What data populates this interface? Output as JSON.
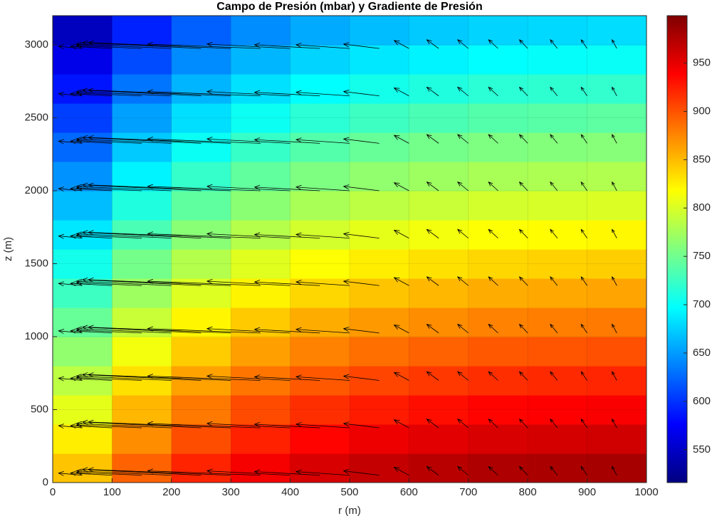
{
  "chart_data": {
    "type": "contourf",
    "title": "Campo de Presión (mbar) y Gradiente de Presión",
    "xlabel": "r (m)",
    "ylabel": "z (m)",
    "xlim": [
      0,
      1000
    ],
    "ylim": [
      0,
      3200
    ],
    "xticks": [
      0,
      100,
      200,
      300,
      400,
      500,
      600,
      700,
      800,
      900,
      1000
    ],
    "yticks": [
      0,
      500,
      1000,
      1500,
      2000,
      2500,
      3000
    ],
    "grid": true,
    "colormap": "jet",
    "clim": [
      516,
      999
    ],
    "colorbar_ticks": [
      550,
      600,
      650,
      700,
      750,
      800,
      850,
      900,
      950
    ],
    "field": {
      "r_centers": [
        50,
        150,
        250,
        350,
        450,
        550,
        650,
        750,
        850,
        950
      ],
      "z_centers": [
        100,
        300,
        500,
        700,
        900,
        1100,
        1300,
        1500,
        1700,
        1900,
        2100,
        2300,
        2500,
        2700,
        2900,
        3100
      ],
      "values": [
        [
          846,
          892,
          922,
          943,
          957,
          966,
          972,
          977,
          979,
          981
        ],
        [
          826,
          872,
          902,
          923,
          937,
          946,
          952,
          957,
          959,
          961
        ],
        [
          806,
          852,
          882,
          903,
          917,
          926,
          932,
          937,
          939,
          941
        ],
        [
          786,
          832,
          862,
          883,
          897,
          906,
          912,
          917,
          919,
          921
        ],
        [
          766,
          812,
          842,
          863,
          877,
          886,
          892,
          897,
          899,
          901
        ],
        [
          746,
          792,
          822,
          843,
          857,
          866,
          872,
          877,
          879,
          881
        ],
        [
          726,
          772,
          802,
          823,
          837,
          846,
          852,
          857,
          859,
          861
        ],
        [
          706,
          752,
          782,
          803,
          817,
          826,
          832,
          837,
          839,
          841
        ],
        [
          686,
          732,
          762,
          783,
          797,
          806,
          812,
          817,
          819,
          821
        ],
        [
          666,
          712,
          742,
          763,
          777,
          786,
          792,
          797,
          799,
          801
        ],
        [
          646,
          692,
          722,
          743,
          757,
          766,
          772,
          777,
          779,
          781
        ],
        [
          626,
          672,
          702,
          723,
          737,
          746,
          752,
          757,
          759,
          761
        ],
        [
          606,
          652,
          682,
          703,
          717,
          726,
          732,
          737,
          739,
          741
        ],
        [
          586,
          632,
          662,
          683,
          697,
          706,
          712,
          717,
          719,
          721
        ],
        [
          566,
          612,
          642,
          663,
          677,
          686,
          692,
          697,
          699,
          701
        ],
        [
          546,
          592,
          622,
          643,
          657,
          666,
          672,
          677,
          679,
          681
        ]
      ]
    },
    "quiver": {
      "color": "#000000",
      "r": [
        0,
        50,
        100,
        150,
        200,
        250,
        300,
        350,
        400,
        450,
        500,
        550,
        600,
        650,
        700,
        750,
        800,
        850,
        900,
        950
      ],
      "z": [
        50,
        375,
        700,
        1025,
        1350,
        1675,
        2000,
        2325,
        2650,
        2975
      ],
      "u": [
        -3,
        -40,
        -70,
        -110,
        -160,
        -200,
        -240,
        -190,
        -140,
        -110,
        -90,
        -60,
        -25,
        -20,
        -18,
        -16,
        -14,
        -12,
        -10,
        -8
      ],
      "v": [
        70,
        15,
        15,
        20,
        30,
        40,
        40,
        30,
        30,
        25,
        25,
        30,
        55,
        60,
        60,
        60,
        60,
        60,
        60,
        60
      ]
    }
  }
}
